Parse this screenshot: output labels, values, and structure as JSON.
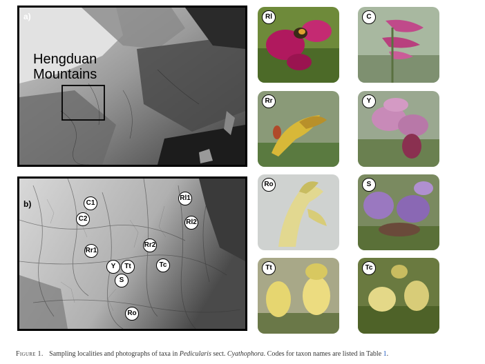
{
  "panel_a": {
    "label": "a)",
    "title_line1": "Hengduan",
    "title_line2": "Mountains"
  },
  "panel_b": {
    "label": "b)",
    "localities": [
      {
        "code": "C1"
      },
      {
        "code": "C2"
      },
      {
        "code": "Rl1"
      },
      {
        "code": "Rl2"
      },
      {
        "code": "Rr1"
      },
      {
        "code": "Rr2"
      },
      {
        "code": "Y"
      },
      {
        "code": "Tt"
      },
      {
        "code": "Tc"
      },
      {
        "code": "S"
      },
      {
        "code": "Ro"
      }
    ]
  },
  "photos": [
    {
      "code": "Rl"
    },
    {
      "code": "C"
    },
    {
      "code": "Rr"
    },
    {
      "code": "Y"
    },
    {
      "code": "Ro"
    },
    {
      "code": "S"
    },
    {
      "code": "Tt"
    },
    {
      "code": "Tc"
    }
  ],
  "caption": {
    "figure": "Figure 1.",
    "text_before": "Sampling localities and photographs of taxa in",
    "genus": "Pedicularis",
    "sect": "sect.",
    "section": "Cyathophora",
    "text_after": ". Codes for taxon names are listed in Table",
    "table_ref": "1",
    "end": "."
  }
}
